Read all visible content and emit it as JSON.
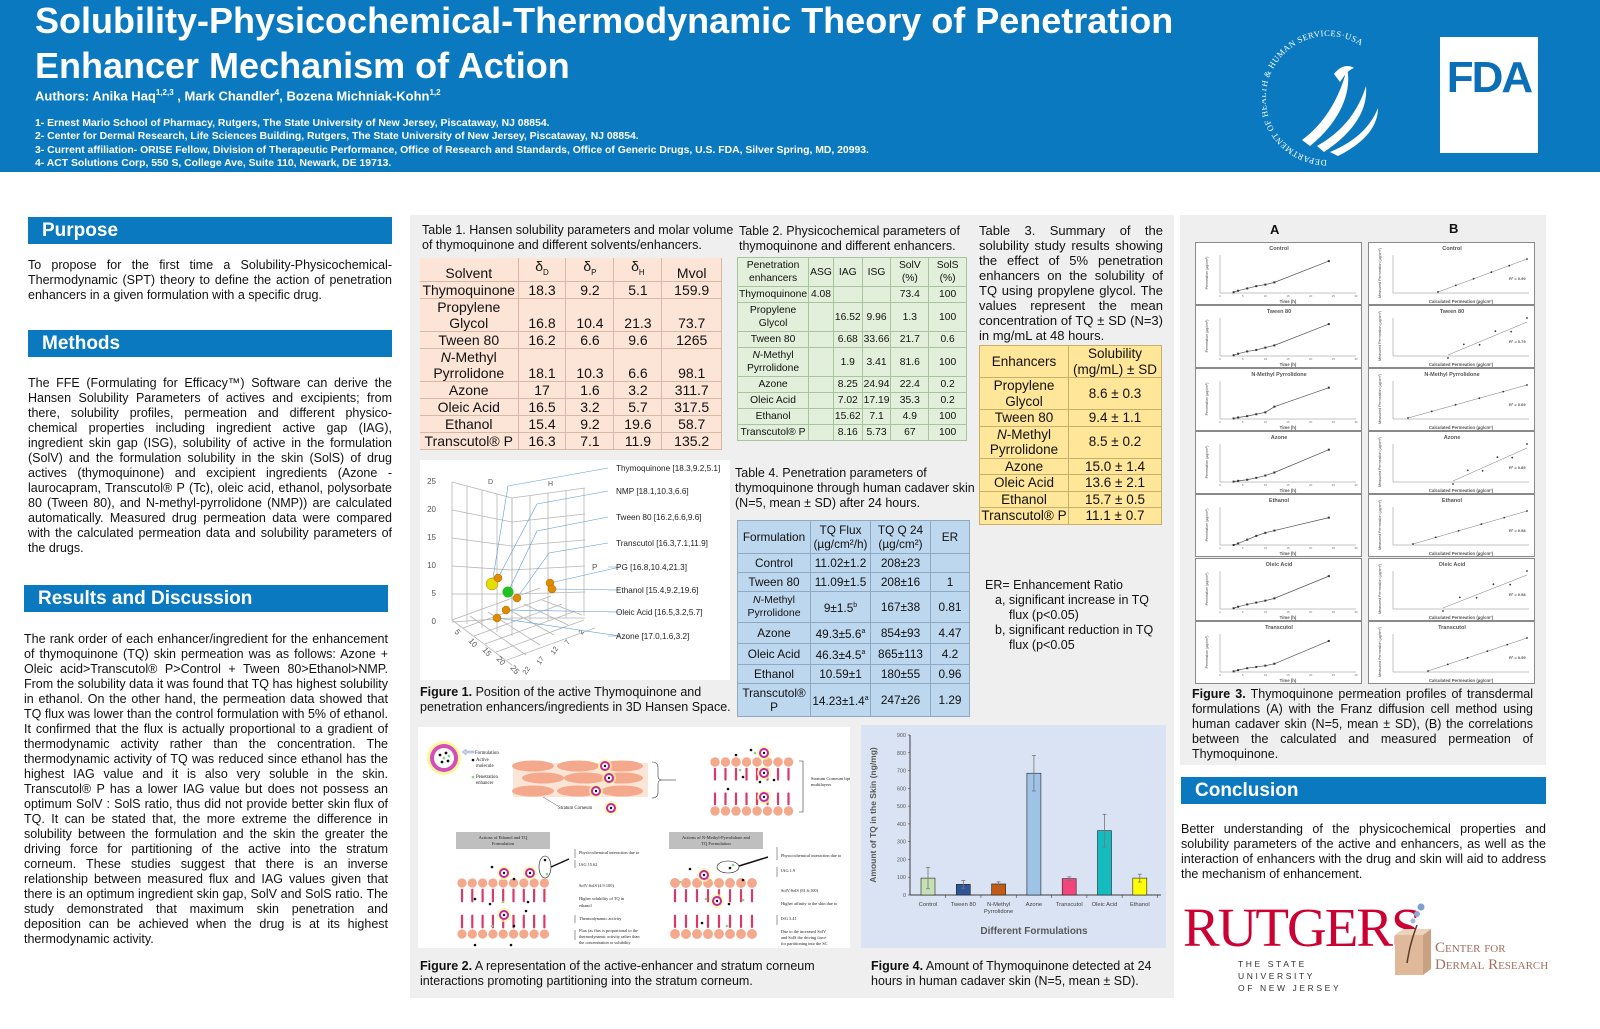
{
  "header": {
    "title_line1": "Solubility-Physicochemical-Thermodynamic Theory of Penetration",
    "title_line2": "Enhancer Mechanism of Action",
    "authors": [
      {
        "name": "Authors: Anika Haq",
        "sup": "1,2,3"
      },
      {
        "name": " , Mark Chandler",
        "sup": "4"
      },
      {
        "name": ", Bozena Michniak-Kohn",
        "sup": "1,2"
      }
    ],
    "affiliations": [
      "1- Ernest Mario School of Pharmacy, Rutgers, The State University of New Jersey, Piscataway, NJ 08854.",
      "2- Center for Dermal Research, Life Sciences Building, Rutgers, The State University of New Jersey, Piscataway, NJ 08854.",
      "3- Current affiliation- ORISE Fellow, Division of Therapeutic Performance, Office of Research and Standards, Office of Generic Drugs, U.S. FDA, Silver Spring, MD, 20993.",
      "4- ACT Solutions Corp, 550 S, College Ave, Suite 110, Newark, DE 19713."
    ],
    "hhs_logo_text": "DEPARTMENT OF HEALTH & HUMAN SERVICES·USA",
    "fda_logo_text": "FDA",
    "colors": {
      "header_bg": "#0b79bf",
      "fda_blue": "#0b6fb8"
    }
  },
  "purpose": {
    "heading": "Purpose",
    "text": "To propose for the first time a Solubility-Physicochemical-Thermodynamic (SPT) theory to define the action of penetration enhancers in a given formulation with a specific drug."
  },
  "methods": {
    "heading": "Methods",
    "text": "The FFE (Formulating for Efficacy™) Software can derive the Hansen Solubility Parameters of actives and excipients; from there, solubility profiles, permeation and different physico-chemical properties including ingredient active gap (IAG), ingredient skin gap (ISG), solubility of active in the formulation (SolV) and the formulation solubility in the skin (SolS) of drug actives (thymoquinone) and excipient ingredients (Azone - laurocapram, Transcutol® P (Tc), oleic acid, ethanol, polysorbate 80 (Tween 80), and N-methyl-pyrrolidone (NMP)) are calculated automatically. Measured drug permeation data were compared with the calculated permeation data and solubility parameters of the drugs."
  },
  "results": {
    "heading": "Results and Discussion",
    "text": "The rank order of each enhancer/ingredient for the enhancement of thymoquinone (TQ) skin permeation was as follows: Azone + Oleic acid>Transcutol® P>Control + Tween 80>Ethanol>NMP. From the solubility data it was found that TQ has highest solubility in ethanol. On the other hand, the permeation data showed that TQ flux was lower than the control formulation with 5% of ethanol. It confirmed that the flux is actually proportional to a gradient of thermodynamic activity rather than the concentration. The thermodynamic activity of TQ was reduced since ethanol has the highest IAG value and it is also very soluble in the skin. Transcutol® P has a lower IAG value but does not possess an optimum SolV : SolS ratio, thus did not provide better skin flux of TQ. It can be stated that, the more extreme the difference in solubility between the formulation and the skin the greater the driving force for partitioning of the active into the stratum corneum. These studies suggest that there is an inverse relationship between measured flux and IAG values given that there is an optimum ingredient skin gap, SolV and SolS ratio. The study demonstrated that maximum skin penetration and deposition can be achieved when the drug is at its highest thermodynamic activity."
  },
  "conclusion": {
    "heading": "Conclusion",
    "text": "Better understanding of the physicochemical properties and solubility parameters of the active and enhancers, as well as the interaction of enhancers with the drug and skin will aid to address the mechanism of enhancement."
  },
  "table1": {
    "caption": "Table 1. Hansen solubility parameters and molar volume of thymoquinone and different solvents/enhancers.",
    "header": [
      {
        "main": "Solvent",
        "sub": ""
      },
      {
        "main": "δ",
        "sub": "D"
      },
      {
        "main": "δ",
        "sub": "P"
      },
      {
        "main": "δ",
        "sub": "H"
      },
      {
        "main": "Mvol",
        "sub": ""
      }
    ],
    "rows": [
      {
        "it": "",
        "name": "Thymoquinone",
        "v": [
          "18.3",
          "9.2",
          "5.1",
          "159.9"
        ]
      },
      {
        "it": "",
        "name": "Propylene Glycol",
        "v": [
          "16.8",
          "10.4",
          "21.3",
          "73.7"
        ]
      },
      {
        "it": "",
        "name": "Tween 80",
        "v": [
          "16.2",
          "6.6",
          "9.6",
          "1265"
        ]
      },
      {
        "it": "N",
        "name": "-Methyl Pyrrolidone",
        "v": [
          "18.1",
          "10.3",
          "6.6",
          "98.1"
        ]
      },
      {
        "it": "",
        "name": "Azone",
        "v": [
          "17",
          "1.6",
          "3.2",
          "311.7"
        ]
      },
      {
        "it": "",
        "name": "Oleic Acid",
        "v": [
          "16.5",
          "3.2",
          "5.7",
          "317.5"
        ]
      },
      {
        "it": "",
        "name": "Ethanol",
        "v": [
          "15.4",
          "9.2",
          "19.6",
          "58.7"
        ]
      },
      {
        "it": "",
        "name": "Transcutol® P",
        "v": [
          "16.3",
          "7.1",
          "11.9",
          "135.2"
        ]
      }
    ],
    "bg": "#fce4d6"
  },
  "table2": {
    "caption": "Table 2. Physicochemical parameters of thymoquinone and different enhancers.",
    "header": [
      "Penetration enhancers",
      "ASG",
      "IAG",
      "ISG",
      "SolV (%)",
      "SolS (%)"
    ],
    "rows": [
      {
        "it": "",
        "name": "Thymoquinone",
        "v": [
          "4.08",
          "",
          "",
          "73.4",
          "100"
        ]
      },
      {
        "it": "",
        "name": "Propylene Glycol",
        "v": [
          "",
          "16.52",
          "9.96",
          "1.3",
          "100"
        ]
      },
      {
        "it": "",
        "name": "Tween 80",
        "v": [
          "",
          "6.68",
          "33.66",
          "21.7",
          "0.6"
        ]
      },
      {
        "it": "N",
        "name": "-Methyl Pyrrolidone",
        "v": [
          "",
          "1.9",
          "3.41",
          "81.6",
          "100"
        ]
      },
      {
        "it": "",
        "name": "Azone",
        "v": [
          "",
          "8.25",
          "24.94",
          "22.4",
          "0.2"
        ]
      },
      {
        "it": "",
        "name": "Oleic Acid",
        "v": [
          "",
          "7.02",
          "17.19",
          "35.3",
          "0.2"
        ]
      },
      {
        "it": "",
        "name": "Ethanol",
        "v": [
          "",
          "15.62",
          "7.1",
          "4.9",
          "100"
        ]
      },
      {
        "it": "",
        "name": "Transcutol® P",
        "v": [
          "",
          "8.16",
          "5.73",
          "67",
          "100"
        ]
      }
    ],
    "bg": "#e2efda"
  },
  "table3": {
    "caption": "Table 3. Summary of the solubility study results showing the effect of 5% penetration enhancers on the solubility of TQ using propylene glycol. The values represent the mean concentration of TQ ± SD (N=3) in mg/mL at 48 hours.",
    "header": [
      "Enhancers",
      "Solubility (mg/mL) ± SD"
    ],
    "rows": [
      {
        "it": "",
        "name": "Propylene Glycol",
        "v": [
          "8.6 ± 0.3"
        ]
      },
      {
        "it": "",
        "name": "Tween 80",
        "v": [
          "9.4 ± 1.1"
        ]
      },
      {
        "it": "N",
        "name": "-Methyl Pyrrolidone",
        "v": [
          "8.5 ± 0.2"
        ]
      },
      {
        "it": "",
        "name": "Azone",
        "v": [
          "15.0 ± 1.4"
        ]
      },
      {
        "it": "",
        "name": "Oleic Acid",
        "v": [
          "13.6 ± 2.1"
        ]
      },
      {
        "it": "",
        "name": "Ethanol",
        "v": [
          "15.7 ± 0.5"
        ]
      },
      {
        "it": "",
        "name": "Transcutol® P",
        "v": [
          "11.1 ± 0.7"
        ]
      }
    ],
    "bg": "#ffe699"
  },
  "table4": {
    "caption": "Table 4. Penetration parameters of thymoquinone through human cadaver skin (N=5, mean ± SD) after 24 hours.",
    "header": [
      "Formulation",
      "TQ Flux (µg/cm²/h)",
      "TQ Q 24 (µg/cm²)",
      "ER"
    ],
    "rows": [
      {
        "it": "",
        "name": "Control",
        "flux": "11.02±1.2",
        "sup": "",
        "q24": "208±23",
        "er": ""
      },
      {
        "it": "",
        "name": "Tween 80",
        "flux": "11.09±1.5",
        "sup": "",
        "q24": "208±16",
        "er": "1"
      },
      {
        "it": "N",
        "name": "-Methyl Pyrrolidone",
        "flux": "9±1.5",
        "sup": "b",
        "q24": "167±38",
        "er": "0.81"
      },
      {
        "it": "",
        "name": "Azone",
        "flux": "49.3±5.6",
        "sup": "a",
        "q24": "854±93",
        "er": "4.47"
      },
      {
        "it": "",
        "name": "Oleic Acid",
        "flux": "46.3±4.5",
        "sup": "a",
        "q24": "865±113",
        "er": "4.2"
      },
      {
        "it": "",
        "name": "Ethanol",
        "flux": "10.59±1",
        "sup": "",
        "q24": "180±55",
        "er": "0.96"
      },
      {
        "it": "",
        "name": "Transcutol® P",
        "flux": "14.23±1.4",
        "sup": "a",
        "q24": "247±26",
        "er": "1.29"
      }
    ],
    "bg": "#bdd7ee"
  },
  "er_notes": {
    "title": "ER= Enhancement Ratio",
    "items": [
      "a, significant increase in TQ flux (p<0.05)",
      "b, significant reduction in TQ flux (p<0.05"
    ]
  },
  "figure1": {
    "caption_label": "Figure 1.",
    "caption": " Position of the active Thymoquinone and penetration enhancers/ingredients in 3D Hansen Space.",
    "axis_labels": {
      "d": "D",
      "h": "H",
      "p": "P"
    },
    "z_ticks": [
      "25",
      "20",
      "15",
      "10",
      "5",
      "0"
    ],
    "x_ticks": [
      "5",
      "10",
      "15",
      "20",
      "25"
    ],
    "y_ticks": [
      "2",
      "7",
      "12",
      "17",
      "22"
    ],
    "points": [
      {
        "label": "Thymoquinone [18.3,9.2,5.1]",
        "color": "#e5df00"
      },
      {
        "label": "NMP [18.1,10.3,6.6]",
        "color": "#e08a00"
      },
      {
        "label": "Tween 80 [16.2,6.6,9.6]",
        "color": "#e08a00"
      },
      {
        "label": "Transcutol [16.3,7.1,11.9]",
        "color": "#e08a00"
      },
      {
        "label": "PG [16.8,10.4,21.3]",
        "color": "#e08a00"
      },
      {
        "label": "Ethanol [15.4,9.2,19.6]",
        "color": "#e08a00"
      },
      {
        "label": "Oleic Acid [16.5,3.2,5.7]",
        "color": "#e08a00"
      },
      {
        "label": "Azone [17.0,1.6,3.2]",
        "color": "#e08a00"
      }
    ]
  },
  "figure2": {
    "caption_label": "Figure 2.",
    "caption": " A representation of the active-enhancer and stratum corneum interactions promoting partitioning into the stratum corneum.",
    "legend": [
      "Formulation",
      "Active",
      "molecule",
      "Penetration",
      "enhancer"
    ],
    "stratum_corneum": "Stratum Corneum",
    "lipid_label": [
      "Stratum Corneum lipid",
      "multilayers"
    ],
    "box_left": [
      "Actions of Ethanol and TQ",
      "Formulation"
    ],
    "box_right": [
      "Actions of N-Methyl-Pyrrolidone and",
      "TQ Formulation"
    ],
    "notes_left": [
      "Physicochemical interaction due to",
      "IAG 15.62",
      "SolV:SolS (4.9:100)",
      "Higher solubility of TQ in",
      "ethanol",
      "Thermodynamic activity",
      "Flux (as flux is proportional to the",
      "thermodynamic activity rather than",
      "the concentration or solubility"
    ],
    "notes_right": [
      "Physicochemical interaction due to",
      "IAG 1.9",
      "SolV:SolS (81.6:100)",
      "Higher affinity to the skin due to",
      "ISG 3.41",
      "Due to the increased SolV",
      "and SolS the driving force",
      "for partitioning into the SC",
      "was reduced",
      "Flux"
    ]
  },
  "figure3": {
    "col_a": "A",
    "col_b": "B",
    "a_ylabel": "Permeation (µg/cm²)",
    "a_xlabel": "Time (h)",
    "b_ylabel": "Measured Permeation (µg/cm²)",
    "b_xlabel": "Calculated Permeation (µg/cm²)",
    "caption_label": "Figure 3.",
    "caption": " Thymoquinone permeation profiles of transdermal formulations (A) with the Franz diffusion cell method using human cadaver skin (N=5, mean ± SD), (B) the correlations between the calculated and measured permeation of Thymoquinone."
  },
  "figure4": {
    "caption_label": "Figure 4.",
    "caption": " Amount of Thymoquinone detected at 24 hours in human cadaver skin (N=5, mean ± SD)."
  },
  "chart_data": [
    {
      "type": "bar",
      "ylabel": "Amount of TQ in the Skin (ng/mg)",
      "xlabel": "Different Formulations",
      "categories": [
        "Control",
        "Tween 80",
        "N-Methyl Pyrrolidone",
        "Azone",
        "Transcutol",
        "Oleic Acid",
        "Ethanol"
      ],
      "values": [
        95,
        60,
        62,
        685,
        92,
        362,
        95
      ],
      "errors": [
        60,
        22,
        12,
        100,
        10,
        92,
        22
      ],
      "colors": [
        "#c5e0b4",
        "#2f5597",
        "#c55a11",
        "#9dc3e6",
        "#f2457c",
        "#14bcc0",
        "#ffff00"
      ],
      "ylim": [
        0,
        900
      ],
      "yticks": [
        0,
        100,
        200,
        300,
        400,
        500,
        600,
        700,
        800,
        900
      ]
    },
    {
      "type": "line",
      "xlabel": "Time (h)",
      "ylabel": "Permeation (µg/cm²)",
      "x": [
        3,
        4,
        6,
        8,
        10,
        12,
        24
      ],
      "xlim": [
        0,
        30
      ],
      "xticks": [
        0,
        5,
        10,
        15,
        20,
        25,
        30
      ],
      "panels": [
        {
          "title": "Control",
          "ymax": 250,
          "values": [
            5,
            15,
            30,
            45,
            55,
            70,
            210
          ],
          "r2": "R² = 0.99"
        },
        {
          "title": "Tween 80",
          "ymax": 250,
          "values": [
            5,
            15,
            30,
            40,
            55,
            70,
            210
          ],
          "r2": "R² = 0.79"
        },
        {
          "title": "N-Methyl Pyrrolidone",
          "ymax": 200,
          "values": [
            3,
            8,
            15,
            25,
            35,
            65,
            165
          ],
          "r2": "R² = 0.69"
        },
        {
          "title": "Azone",
          "ymax": 1000,
          "values": [
            10,
            30,
            60,
            110,
            170,
            250,
            850
          ],
          "r2": "R² = 0.89"
        },
        {
          "title": "Ethanol",
          "ymax": 250,
          "values": [
            0,
            10,
            35,
            60,
            80,
            95,
            180
          ],
          "r2": "R² = 0.98"
        },
        {
          "title": "Oleic Acid",
          "ymax": 1000,
          "values": [
            20,
            60,
            120,
            170,
            220,
            280,
            865
          ],
          "r2": "R² = 0.98"
        },
        {
          "title": "Transcutol",
          "ymax": 300,
          "values": [
            5,
            15,
            30,
            40,
            50,
            65,
            245
          ],
          "r2": "R² = 0.99"
        }
      ]
    }
  ],
  "logos": {
    "rutgers": "RUTGERS",
    "rutgers_sub1": "THE STATE UNIVERSITY",
    "rutgers_sub2": "OF NEW JERSEY",
    "cdr1": "Center for",
    "cdr2": "Dermal Research",
    "rutgers_red": "#cc0033"
  }
}
